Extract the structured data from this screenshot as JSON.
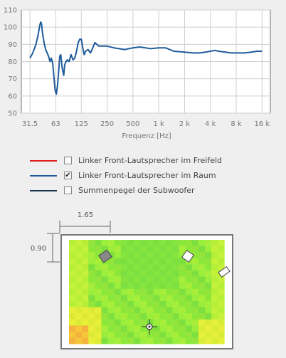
{
  "chart_data": {
    "type": "line",
    "xlabel": "Frequenz [Hz]",
    "x_scale": "log",
    "xlim": [
      25,
      20000
    ],
    "ylim": [
      50,
      110
    ],
    "x_ticks": [
      31.5,
      63,
      125,
      250,
      500,
      1000,
      2000,
      4000,
      8000,
      16000
    ],
    "x_tick_labels": [
      "31.5",
      "63",
      "125",
      "250",
      "500",
      "1 k",
      "2 k",
      "4 k",
      "8 k",
      "16 k"
    ],
    "y_ticks": [
      50,
      60,
      70,
      80,
      90,
      100,
      110
    ],
    "y_tick_labels": [
      "50",
      "60",
      "70",
      "80",
      "90",
      "100",
      "110"
    ],
    "grid": true,
    "series": [
      {
        "name": "Linker Front-Lautsprecher im Raum",
        "color": "#1f5b9c",
        "x": [
          31.5,
          34,
          37,
          39,
          41,
          42,
          43,
          44,
          46,
          48,
          50,
          52,
          54,
          56,
          58,
          60,
          62,
          64,
          66,
          68,
          70,
          72,
          75,
          78,
          80,
          83,
          86,
          90,
          95,
          100,
          105,
          110,
          115,
          120,
          125,
          130,
          135,
          140,
          150,
          160,
          170,
          180,
          200,
          250,
          300,
          400,
          500,
          600,
          700,
          800,
          1000,
          1200,
          1500,
          2000,
          2500,
          3000,
          3500,
          4000,
          4500,
          5000,
          6000,
          7000,
          8000,
          10000,
          12000,
          14000,
          16000
        ],
        "y": [
          82,
          85,
          90,
          95,
          101,
          103,
          102,
          97,
          91,
          87,
          85,
          83,
          80,
          82,
          79,
          71,
          63,
          61,
          66,
          74,
          83,
          84,
          76,
          72,
          78,
          80,
          81,
          80,
          84,
          81,
          82,
          86,
          91,
          93,
          93,
          88,
          84,
          86,
          87,
          85,
          88,
          91,
          89,
          89,
          88,
          87,
          88,
          88.5,
          88,
          87.5,
          88,
          88,
          86,
          85.5,
          85,
          85,
          85.5,
          86,
          86.5,
          86,
          85.5,
          85,
          85,
          85,
          85.5,
          86,
          86
        ]
      }
    ]
  },
  "legend": [
    {
      "label": "Linker Front-Lautsprecher im Freifeld",
      "color": "#e02020",
      "checked": false
    },
    {
      "label": "Linker Front-Lautsprecher im Raum",
      "color": "#1f5b9c",
      "checked": true
    },
    {
      "label": "Summenpegel der Subwoofer",
      "color": "#17324d",
      "checked": false
    }
  ],
  "check_mark": "✔",
  "room": {
    "width_dim": "1.65",
    "height_dim": "0.90"
  }
}
